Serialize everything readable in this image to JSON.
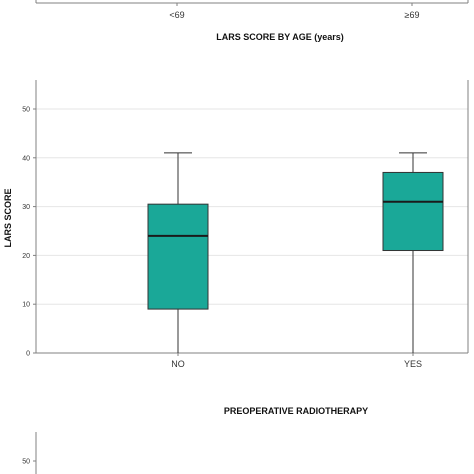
{
  "chart_data": [
    {
      "type": "box",
      "categories": [
        "<69",
        "≥69"
      ],
      "xlabel": "LARS SCORE BY AGE (years)",
      "ylabel": "",
      "series": [],
      "note": "top chart partially visible (cropped); only x-axis tick labels and title shown"
    },
    {
      "type": "box",
      "categories": [
        "NO",
        "YES"
      ],
      "xlabel": "PREOPERATIVE RADIOTHERAPY",
      "ylabel": "LARS SCORE",
      "ylim": [
        0,
        55
      ],
      "yticks": [
        0,
        10,
        20,
        30,
        40,
        50
      ],
      "grid": true,
      "box_color": "#1aa898",
      "boxes": [
        {
          "category": "NO",
          "min": 0,
          "q1": 9,
          "median": 24,
          "q3": 30.5,
          "max": 41
        },
        {
          "category": "YES",
          "min": 0,
          "q1": 21,
          "median": 31,
          "q3": 37,
          "max": 41
        }
      ]
    },
    {
      "type": "box",
      "ylim": [
        0,
        55
      ],
      "yticks": [
        50
      ],
      "note": "bottom chart partially visible (cropped)"
    }
  ],
  "colors": {
    "box_fill": "#1aa898",
    "median": "#1a1a1a",
    "axis": "#808080",
    "grid": "#e6e6e6"
  }
}
